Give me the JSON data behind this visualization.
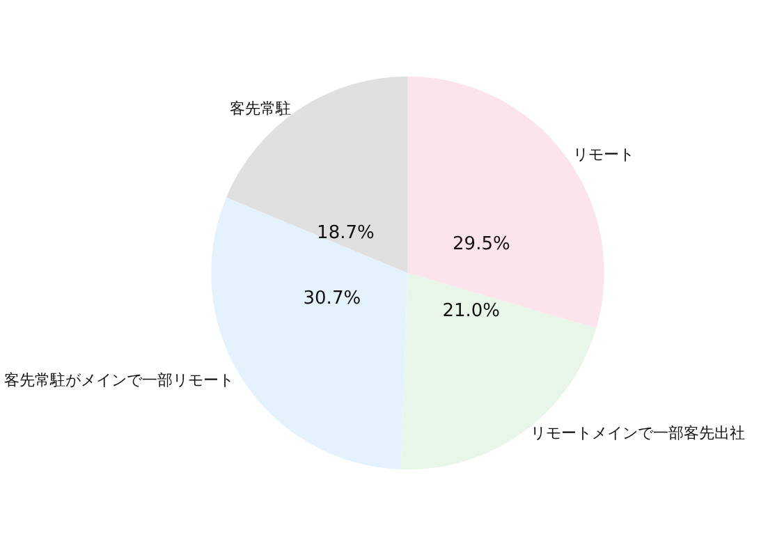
{
  "chart_data": {
    "type": "pie",
    "categories": [
      "リモート",
      "リモートメインで一部客先出社",
      "客先常駐がメインで一部リモート",
      "客先常駐"
    ],
    "values": [
      29.5,
      21.0,
      30.7,
      18.7
    ],
    "value_labels": [
      "29.5%",
      "21.0%",
      "30.7%",
      "18.7%"
    ],
    "colors": [
      "#fce4ec",
      "#e8f5e9",
      "#e3f2fd",
      "#e0e0e0"
    ],
    "legend": false
  }
}
